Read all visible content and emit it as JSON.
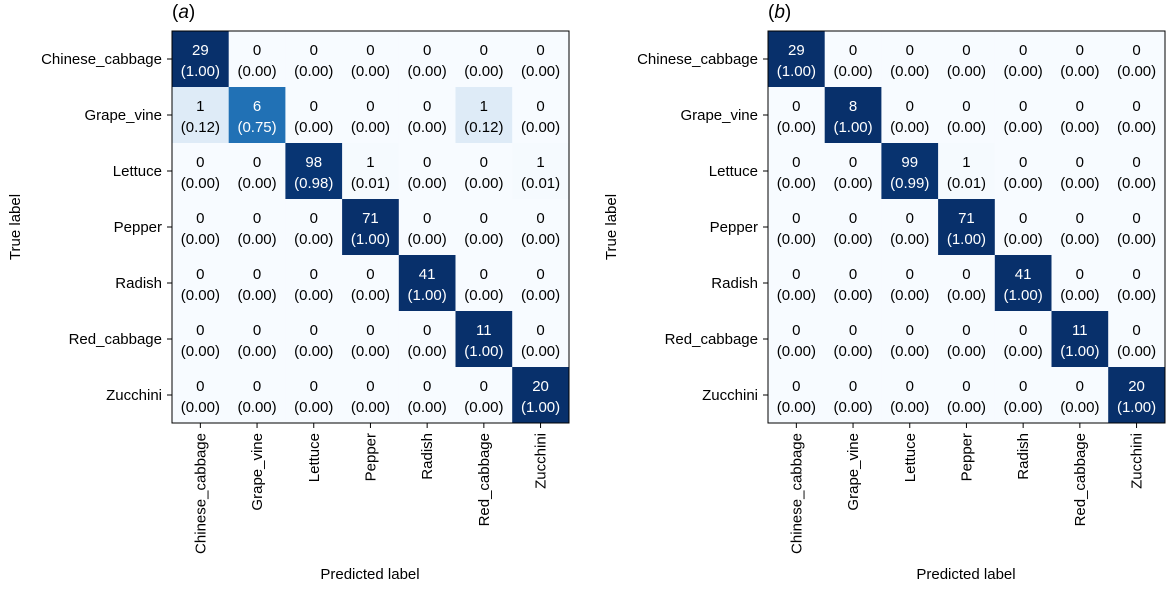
{
  "chart_data": [
    {
      "type": "heatmap",
      "panel_label": "a",
      "xlabel": "Predicted label",
      "ylabel": "True label",
      "categories": [
        "Chinese_cabbage",
        "Grape_vine",
        "Lettuce",
        "Pepper",
        "Radish",
        "Red_cabbage",
        "Zucchini"
      ],
      "counts": [
        [
          29,
          0,
          0,
          0,
          0,
          0,
          0
        ],
        [
          1,
          6,
          0,
          0,
          0,
          1,
          0
        ],
        [
          0,
          0,
          98,
          1,
          0,
          0,
          1
        ],
        [
          0,
          0,
          0,
          71,
          0,
          0,
          0
        ],
        [
          0,
          0,
          0,
          0,
          41,
          0,
          0
        ],
        [
          0,
          0,
          0,
          0,
          0,
          11,
          0
        ],
        [
          0,
          0,
          0,
          0,
          0,
          0,
          20
        ]
      ],
      "normalized": [
        [
          "(1.00)",
          "(0.00)",
          "(0.00)",
          "(0.00)",
          "(0.00)",
          "(0.00)",
          "(0.00)"
        ],
        [
          "(0.12)",
          "(0.75)",
          "(0.00)",
          "(0.00)",
          "(0.00)",
          "(0.12)",
          "(0.00)"
        ],
        [
          "(0.00)",
          "(0.00)",
          "(0.98)",
          "(0.01)",
          "(0.00)",
          "(0.00)",
          "(0.01)"
        ],
        [
          "(0.00)",
          "(0.00)",
          "(0.00)",
          "(1.00)",
          "(0.00)",
          "(0.00)",
          "(0.00)"
        ],
        [
          "(0.00)",
          "(0.00)",
          "(0.00)",
          "(0.00)",
          "(1.00)",
          "(0.00)",
          "(0.00)"
        ],
        [
          "(0.00)",
          "(0.00)",
          "(0.00)",
          "(0.00)",
          "(0.00)",
          "(1.00)",
          "(0.00)"
        ],
        [
          "(0.00)",
          "(0.00)",
          "(0.00)",
          "(0.00)",
          "(0.00)",
          "(0.00)",
          "(1.00)"
        ]
      ],
      "colormap": "Blues",
      "colors": {
        "low": "#f7fbff",
        "high": "#08306b"
      }
    },
    {
      "type": "heatmap",
      "panel_label": "b",
      "xlabel": "Predicted label",
      "ylabel": "True label",
      "categories": [
        "Chinese_cabbage",
        "Grape_vine",
        "Lettuce",
        "Pepper",
        "Radish",
        "Red_cabbage",
        "Zucchini"
      ],
      "counts": [
        [
          29,
          0,
          0,
          0,
          0,
          0,
          0
        ],
        [
          0,
          8,
          0,
          0,
          0,
          0,
          0
        ],
        [
          0,
          0,
          99,
          1,
          0,
          0,
          0
        ],
        [
          0,
          0,
          0,
          71,
          0,
          0,
          0
        ],
        [
          0,
          0,
          0,
          0,
          41,
          0,
          0
        ],
        [
          0,
          0,
          0,
          0,
          0,
          11,
          0
        ],
        [
          0,
          0,
          0,
          0,
          0,
          0,
          20
        ]
      ],
      "normalized": [
        [
          "(1.00)",
          "(0.00)",
          "(0.00)",
          "(0.00)",
          "(0.00)",
          "(0.00)",
          "(0.00)"
        ],
        [
          "(0.00)",
          "(1.00)",
          "(0.00)",
          "(0.00)",
          "(0.00)",
          "(0.00)",
          "(0.00)"
        ],
        [
          "(0.00)",
          "(0.00)",
          "(0.99)",
          "(0.01)",
          "(0.00)",
          "(0.00)",
          "(0.00)"
        ],
        [
          "(0.00)",
          "(0.00)",
          "(0.00)",
          "(1.00)",
          "(0.00)",
          "(0.00)",
          "(0.00)"
        ],
        [
          "(0.00)",
          "(0.00)",
          "(0.00)",
          "(0.00)",
          "(1.00)",
          "(0.00)",
          "(0.00)"
        ],
        [
          "(0.00)",
          "(0.00)",
          "(0.00)",
          "(0.00)",
          "(0.00)",
          "(1.00)",
          "(0.00)"
        ],
        [
          "(0.00)",
          "(0.00)",
          "(0.00)",
          "(0.00)",
          "(0.00)",
          "(0.00)",
          "(1.00)"
        ]
      ],
      "colormap": "Blues",
      "colors": {
        "low": "#f7fbff",
        "high": "#08306b"
      }
    }
  ]
}
